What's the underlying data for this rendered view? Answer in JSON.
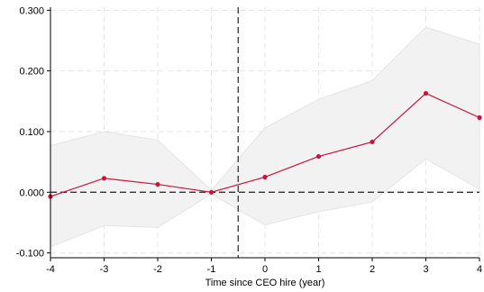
{
  "chart_data": {
    "type": "line",
    "title": "",
    "xlabel": "Time since CEO hire (year)",
    "ylabel": "",
    "x": [
      -4,
      -3,
      -2,
      -1,
      0,
      1,
      2,
      3,
      4
    ],
    "series": [
      {
        "values": [
          -0.007,
          0.023,
          0.013,
          0.0,
          0.025,
          0.059,
          0.083,
          0.163,
          0.123
        ],
        "ci_upper": [
          0.077,
          0.1,
          0.086,
          0.003,
          0.106,
          0.153,
          0.184,
          0.272,
          0.244
        ],
        "ci_lower": [
          -0.09,
          -0.055,
          -0.058,
          -0.003,
          -0.054,
          -0.032,
          -0.016,
          0.055,
          0.005
        ]
      }
    ],
    "xlim": [
      -4,
      4
    ],
    "ylim": [
      -0.108,
      0.305
    ],
    "xticks": [
      "-4",
      "-3",
      "-2",
      "-1",
      "0",
      "1",
      "2",
      "3",
      "4"
    ],
    "yticks": [
      "-0.100",
      "0.000",
      "0.100",
      "0.200",
      "0.300"
    ],
    "ytick_values": [
      -0.1,
      0.0,
      0.1,
      0.2,
      0.3
    ],
    "reference_lines": {
      "horizontal_y": 0.0,
      "vertical_x": -0.5
    },
    "grid": true,
    "colors": {
      "line": "#c8143f",
      "ci_band": "#f2f2f2",
      "ci_edge": "#e4e4e4",
      "grid": "#e6e6e6",
      "reference": "#333333",
      "axis": "#000000"
    }
  }
}
